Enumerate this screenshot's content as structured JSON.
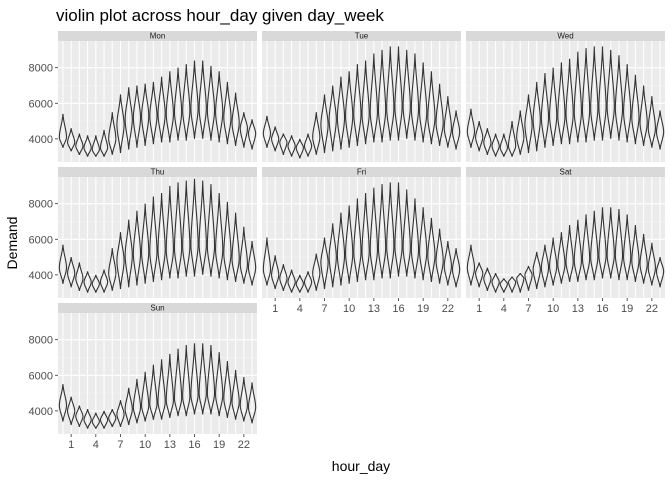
{
  "chart_data": {
    "type": "violin",
    "title": "violin plot across hour_day given day_week",
    "xlabel": "hour_day",
    "ylabel": "Demand",
    "x_categories": [
      0,
      1,
      2,
      3,
      4,
      5,
      6,
      7,
      8,
      9,
      10,
      11,
      12,
      13,
      14,
      15,
      16,
      17,
      18,
      19,
      20,
      21,
      22,
      23
    ],
    "x_tick_labels": [
      "1",
      "4",
      "7",
      "10",
      "13",
      "16",
      "19",
      "22"
    ],
    "x_tick_values": [
      1,
      4,
      7,
      10,
      13,
      16,
      19,
      22
    ],
    "y_ticks": [
      4000,
      6000,
      8000
    ],
    "ylim": [
      2700,
      9500
    ],
    "grid": true,
    "facet_var": "day_week",
    "facets": [
      {
        "label": "Mon",
        "max": [
          5400,
          4600,
          4300,
          4200,
          4200,
          4500,
          5500,
          6500,
          6900,
          7000,
          7100,
          7200,
          7500,
          7800,
          8000,
          8200,
          8400,
          8400,
          8100,
          7800,
          7200,
          6600,
          5500,
          5100
        ],
        "min": [
          3500,
          3300,
          3100,
          3000,
          3000,
          3000,
          3100,
          3200,
          3400,
          3500,
          3600,
          3700,
          3800,
          3800,
          3900,
          3900,
          4000,
          4000,
          3900,
          3800,
          3700,
          3600,
          3500,
          3400
        ],
        "median": [
          4100,
          3800,
          3600,
          3500,
          3400,
          3500,
          4000,
          4800,
          5100,
          5200,
          5300,
          5300,
          5400,
          5400,
          5500,
          5600,
          5700,
          5700,
          5600,
          5500,
          5200,
          4900,
          4600,
          4300
        ]
      },
      {
        "label": "Tue",
        "max": [
          5300,
          4700,
          4300,
          4200,
          4000,
          4300,
          5500,
          6500,
          7000,
          7500,
          7800,
          8200,
          8400,
          8800,
          9000,
          9200,
          9200,
          9000,
          8800,
          8300,
          7800,
          7100,
          6400,
          5600
        ],
        "min": [
          3500,
          3300,
          3100,
          3000,
          2900,
          3000,
          3100,
          3200,
          3300,
          3400,
          3500,
          3600,
          3700,
          3800,
          3800,
          3900,
          3900,
          4000,
          3900,
          3800,
          3700,
          3600,
          3500,
          3400
        ],
        "median": [
          4300,
          4000,
          3800,
          3600,
          3500,
          3600,
          4100,
          4800,
          5100,
          5200,
          5300,
          5400,
          5400,
          5500,
          5600,
          5700,
          5800,
          5800,
          5700,
          5500,
          5200,
          4900,
          4600,
          4400
        ]
      },
      {
        "label": "Wed",
        "max": [
          5700,
          5000,
          4600,
          4300,
          4300,
          5000,
          5600,
          6500,
          7200,
          7700,
          8000,
          8300,
          8500,
          8900,
          9100,
          9200,
          9200,
          9000,
          8700,
          8200,
          7600,
          7000,
          6400,
          5600
        ],
        "min": [
          3500,
          3300,
          3100,
          3000,
          3000,
          3000,
          3100,
          3200,
          3300,
          3500,
          3600,
          3700,
          3700,
          3800,
          3800,
          3900,
          3900,
          4000,
          3900,
          3800,
          3700,
          3600,
          3500,
          3400
        ],
        "median": [
          4400,
          4100,
          3800,
          3600,
          3500,
          3600,
          4100,
          4800,
          5100,
          5200,
          5300,
          5300,
          5400,
          5500,
          5600,
          5700,
          5800,
          5800,
          5700,
          5500,
          5200,
          4900,
          4600,
          4400
        ]
      },
      {
        "label": "Thu",
        "max": [
          5700,
          5000,
          4700,
          4200,
          4000,
          4300,
          5500,
          6400,
          7100,
          7600,
          8000,
          8400,
          8600,
          9000,
          9200,
          9300,
          9400,
          9300,
          9100,
          8600,
          8100,
          7500,
          6700,
          5900
        ],
        "min": [
          3500,
          3300,
          3100,
          3000,
          3000,
          3000,
          3100,
          3200,
          3300,
          3400,
          3500,
          3600,
          3700,
          3800,
          3800,
          3900,
          3900,
          4000,
          3900,
          3800,
          3700,
          3600,
          3500,
          3400
        ],
        "median": [
          4400,
          4100,
          3800,
          3600,
          3500,
          3600,
          4100,
          4800,
          5100,
          5200,
          5300,
          5300,
          5400,
          5400,
          5500,
          5600,
          5700,
          5700,
          5600,
          5400,
          5200,
          4900,
          4600,
          4400
        ]
      },
      {
        "label": "Fri",
        "max": [
          6100,
          5100,
          4600,
          4300,
          4000,
          4200,
          5200,
          6100,
          6900,
          7500,
          7900,
          8300,
          8600,
          8900,
          9100,
          9200,
          9200,
          8800,
          8300,
          7800,
          7200,
          6600,
          5900,
          5500
        ],
        "min": [
          3400,
          3200,
          3100,
          3000,
          3000,
          3000,
          3100,
          3200,
          3300,
          3400,
          3500,
          3600,
          3700,
          3700,
          3800,
          3800,
          3900,
          3900,
          3800,
          3700,
          3600,
          3500,
          3400,
          3300
        ],
        "median": [
          4300,
          4000,
          3800,
          3600,
          3500,
          3600,
          4100,
          4700,
          5000,
          5100,
          5200,
          5300,
          5300,
          5400,
          5500,
          5600,
          5600,
          5500,
          5400,
          5300,
          5100,
          4800,
          4500,
          4300
        ]
      },
      {
        "label": "Sat",
        "max": [
          5700,
          4700,
          4400,
          4100,
          3800,
          3900,
          4100,
          4500,
          5300,
          5700,
          6100,
          6400,
          6800,
          7100,
          7400,
          7600,
          7800,
          7800,
          7700,
          7400,
          6800,
          6300,
          5800,
          5000
        ],
        "min": [
          3400,
          3300,
          3100,
          3000,
          3000,
          3000,
          3000,
          3100,
          3200,
          3300,
          3400,
          3500,
          3600,
          3600,
          3700,
          3700,
          3800,
          3800,
          3700,
          3700,
          3600,
          3500,
          3400,
          3300
        ],
        "median": [
          4400,
          4100,
          3800,
          3600,
          3500,
          3600,
          3800,
          4000,
          4300,
          4400,
          4500,
          4600,
          4700,
          4800,
          4900,
          5000,
          5100,
          5100,
          5100,
          5000,
          4800,
          4600,
          4400,
          4200
        ]
      },
      {
        "label": "Sun",
        "max": [
          5500,
          4800,
          4300,
          4100,
          3900,
          4000,
          4100,
          4600,
          5300,
          5800,
          6200,
          6600,
          6900,
          7200,
          7500,
          7700,
          7800,
          7800,
          7700,
          7300,
          6800,
          6300,
          5900,
          5600
        ],
        "min": [
          3400,
          3200,
          3100,
          3000,
          3000,
          3000,
          3100,
          3100,
          3200,
          3300,
          3400,
          3500,
          3500,
          3600,
          3700,
          3700,
          3800,
          3800,
          3800,
          3700,
          3600,
          3500,
          3400,
          3300
        ],
        "median": [
          4300,
          4000,
          3700,
          3500,
          3400,
          3500,
          3600,
          3800,
          4100,
          4200,
          4300,
          4400,
          4500,
          4600,
          4700,
          4800,
          4900,
          5000,
          5000,
          4900,
          4700,
          4500,
          4300,
          4200
        ]
      }
    ]
  }
}
